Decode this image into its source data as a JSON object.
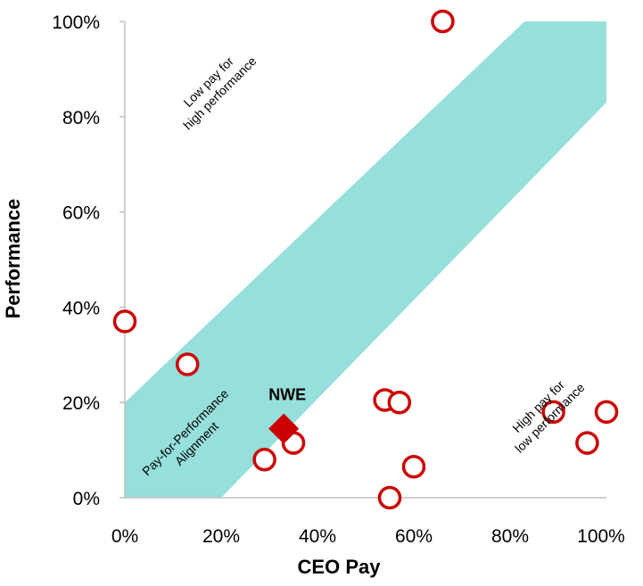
{
  "chart_data": {
    "type": "scatter",
    "xlabel": "CEO Pay",
    "ylabel": "Performance",
    "xlim": [
      0,
      100
    ],
    "ylim": [
      0,
      100
    ],
    "x_ticks": [
      "0%",
      "20%",
      "40%",
      "60%",
      "80%",
      "100%"
    ],
    "y_ticks": [
      "0%",
      "20%",
      "40%",
      "60%",
      "80%",
      "100%"
    ],
    "band": {
      "lower_start": [
        20,
        0
      ],
      "lower_end": [
        100,
        83
      ],
      "upper_start": [
        0,
        20
      ],
      "upper_end": [
        83,
        100
      ],
      "color": "#96dfdb"
    },
    "series": [
      {
        "marker": "open-circle",
        "color": "#cc0000",
        "points": [
          {
            "x": 0,
            "y": 37
          },
          {
            "x": 13,
            "y": 28
          },
          {
            "x": 29,
            "y": 8
          },
          {
            "x": 35,
            "y": 11.5
          },
          {
            "x": 54,
            "y": 20.5
          },
          {
            "x": 57,
            "y": 20
          },
          {
            "x": 55,
            "y": 0
          },
          {
            "x": 60,
            "y": 6.5
          },
          {
            "x": 66,
            "y": 100
          },
          {
            "x": 89,
            "y": 18
          },
          {
            "x": 96,
            "y": 11.5
          },
          {
            "x": 100,
            "y": 18
          }
        ]
      }
    ],
    "highlight": {
      "label": "NWE",
      "x": 33,
      "y": 14.5,
      "marker": "diamond",
      "color": "#cc0000"
    },
    "annotations": [
      {
        "id": "low-pay",
        "lines": [
          "Low pay for",
          "high performance"
        ]
      },
      {
        "id": "alignment",
        "lines": [
          "Pay-for-Performance",
          "Alignment"
        ]
      },
      {
        "id": "high-pay",
        "lines": [
          "High pay for",
          "low performance"
        ]
      }
    ]
  }
}
